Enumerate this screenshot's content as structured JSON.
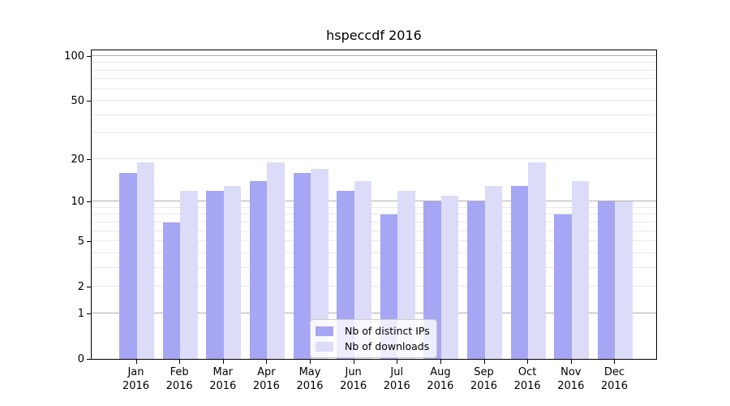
{
  "chart_data": {
    "type": "bar",
    "title": "hspeccdf 2016",
    "categories": [
      "Jan",
      "Feb",
      "Mar",
      "Apr",
      "May",
      "Jun",
      "Jul",
      "Aug",
      "Sep",
      "Oct",
      "Nov",
      "Dec"
    ],
    "category_year": "2016",
    "series": [
      {
        "name": "Nb of distinct IPs",
        "color": "#a6a6f4",
        "values": [
          16,
          7,
          12,
          14,
          16,
          12,
          8,
          10,
          10,
          13,
          8,
          10
        ]
      },
      {
        "name": "Nb of downloads",
        "color": "#dcdcf9",
        "values": [
          19,
          12,
          13,
          19,
          17,
          14,
          12,
          11,
          13,
          19,
          14,
          10
        ]
      }
    ],
    "xlabel": "",
    "ylabel": "",
    "y_scale": "log10(1+x)",
    "y_tick_values": [
      0,
      1,
      2,
      5,
      10,
      20,
      50,
      100
    ],
    "y_major_gridlines": [
      1,
      10,
      100
    ],
    "y_minor_gridlines": [
      2,
      3,
      4,
      5,
      6,
      7,
      8,
      9,
      20,
      30,
      40,
      50,
      60,
      70,
      80,
      90
    ],
    "ylim": [
      0,
      112
    ],
    "grid": true,
    "legend_position": "lower center"
  },
  "colors": {
    "background": "#ffffff",
    "spine": "#000000",
    "major_grid": "#b0b0b0",
    "minor_grid": "#e9e9e9",
    "tick_text": "#000000",
    "legend_border": "#cccccc"
  }
}
